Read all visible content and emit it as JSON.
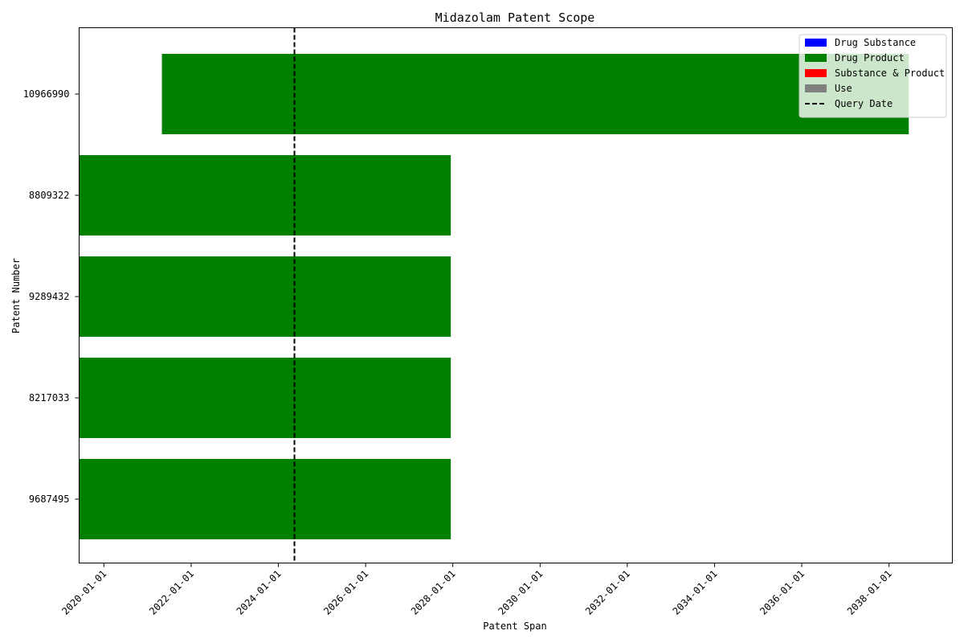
{
  "chart_data": {
    "type": "bar",
    "orientation": "horizontal",
    "title": "Midazolam Patent Scope",
    "xlabel": "Patent Span",
    "ylabel": "Patent Number",
    "x_scale": "date",
    "xlim": [
      "2019-06-08",
      "2039-06-15"
    ],
    "x_ticks": [
      "2020-01-01",
      "2022-01-01",
      "2024-01-01",
      "2026-01-01",
      "2028-01-01",
      "2030-01-01",
      "2032-01-01",
      "2034-01-01",
      "2036-01-01",
      "2038-01-01"
    ],
    "categories": [
      "10966990",
      "8809322",
      "9289432",
      "8217033",
      "9687495"
    ],
    "bars": [
      {
        "patent": "10966990",
        "start": "2021-05-01",
        "end": "2038-06-15",
        "scope": "Drug Product"
      },
      {
        "patent": "8809322",
        "start": "2019-06-08",
        "end": "2027-12-15",
        "scope": "Drug Product"
      },
      {
        "patent": "9289432",
        "start": "2019-06-08",
        "end": "2027-12-15",
        "scope": "Drug Product"
      },
      {
        "patent": "8217033",
        "start": "2019-06-08",
        "end": "2027-12-15",
        "scope": "Drug Product"
      },
      {
        "patent": "9687495",
        "start": "2019-06-08",
        "end": "2027-12-15",
        "scope": "Drug Product"
      }
    ],
    "query_date": "2024-05-15",
    "legend": {
      "placement": "top-right",
      "entries": [
        {
          "label": "Drug Substance",
          "color": "#0000ff",
          "kind": "patch"
        },
        {
          "label": "Drug Product",
          "color": "#008000",
          "kind": "patch"
        },
        {
          "label": "Substance & Product",
          "color": "#ff0000",
          "kind": "patch"
        },
        {
          "label": "Use",
          "color": "#808080",
          "kind": "patch"
        },
        {
          "label": "Query Date",
          "color": "#000000",
          "kind": "dashed-line"
        }
      ]
    },
    "colors": {
      "Drug Substance": "#0000ff",
      "Drug Product": "#008000",
      "Substance & Product": "#ff0000",
      "Use": "#808080"
    },
    "grid": false
  }
}
